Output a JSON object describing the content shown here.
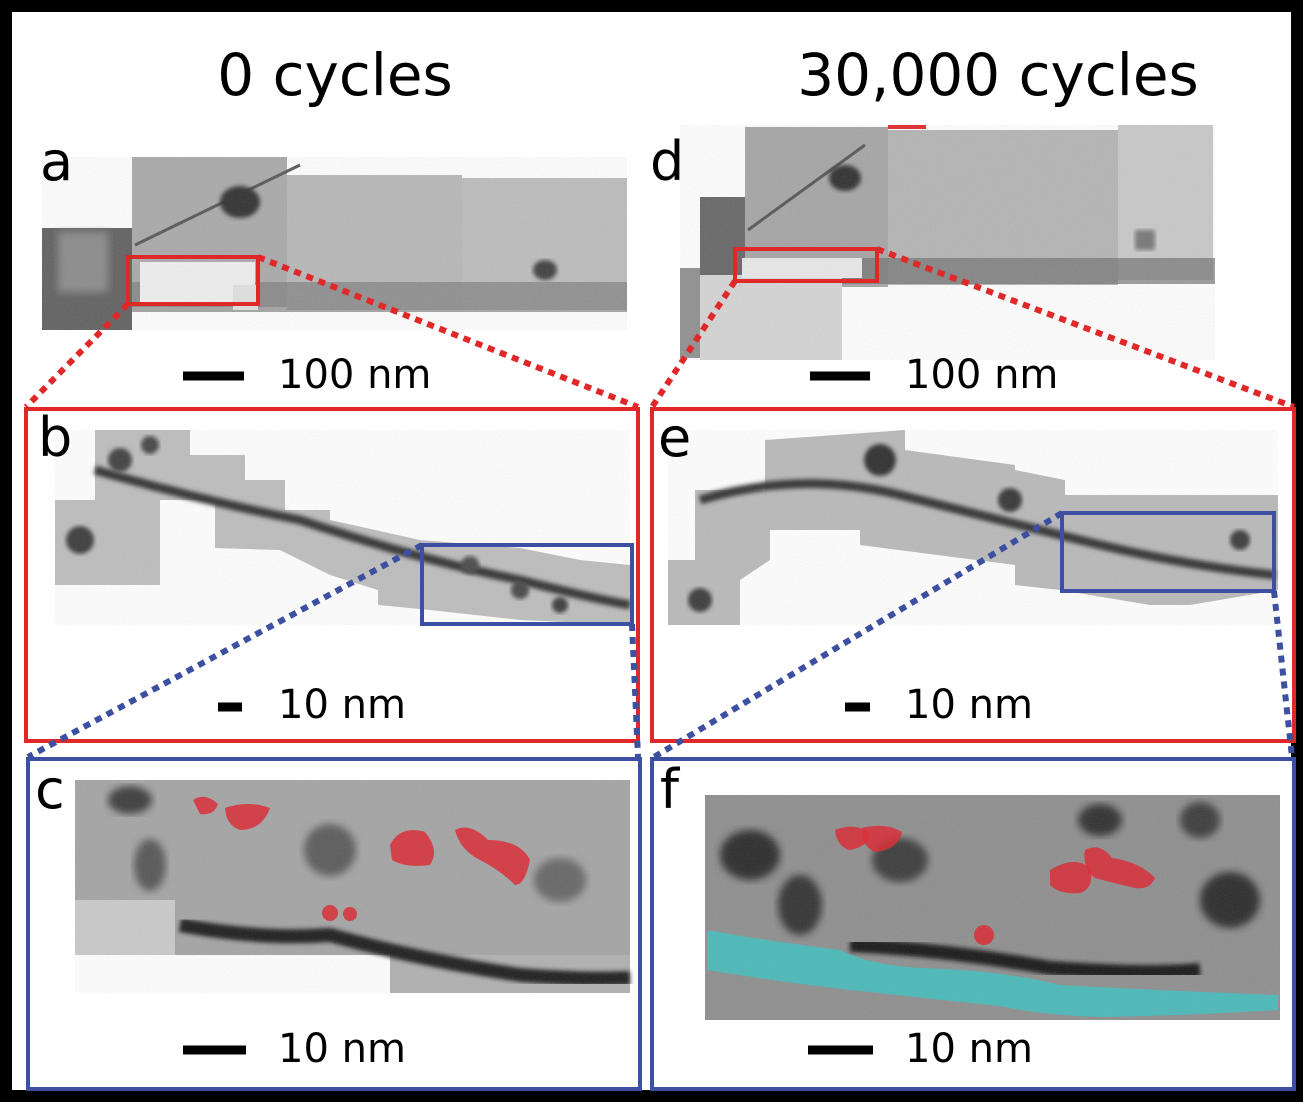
{
  "columns": [
    {
      "title": "0 cycles"
    },
    {
      "title": "30,000 cycles"
    }
  ],
  "panels": {
    "a": {
      "letter": "a",
      "scale_label": "100 nm"
    },
    "b": {
      "letter": "b",
      "scale_label": "10 nm"
    },
    "c": {
      "letter": "c",
      "scale_label": "10 nm"
    },
    "d": {
      "letter": "d",
      "scale_label": "100 nm"
    },
    "e": {
      "letter": "e",
      "scale_label": "10 nm"
    },
    "f": {
      "letter": "f",
      "scale_label": "10 nm"
    }
  },
  "colors": {
    "outer_border": "#000000",
    "zoom_box_red": "#e02828",
    "zoom_box_blue": "#3c4fa0",
    "particle_highlight": "#d9303a",
    "layer_highlight": "#3fc6c6"
  }
}
